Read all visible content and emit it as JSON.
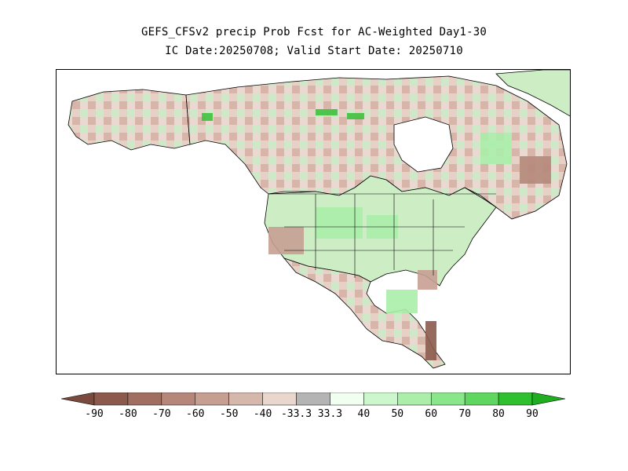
{
  "title_line1": "GEFS_CFSv2 precip Prob Fcst for AC-Weighted Day1-30",
  "title_line2": "IC Date:20250708; Valid Start Date: 20250710",
  "legend": {
    "arrow_left_color": "#7a4a3e",
    "arrow_right_color": "#1fae1f",
    "bins": [
      {
        "color": "#8b5a4d"
      },
      {
        "color": "#a06f62"
      },
      {
        "color": "#b5877a"
      },
      {
        "color": "#c69f92"
      },
      {
        "color": "#d6b7ab"
      },
      {
        "color": "#e9d6cc"
      },
      {
        "color": "#b4b4b4"
      },
      {
        "color": "#f0fff0"
      },
      {
        "color": "#ccf7cc"
      },
      {
        "color": "#aaeeaa"
      },
      {
        "color": "#8ae68a"
      },
      {
        "color": "#5fd65f"
      },
      {
        "color": "#2fc02f"
      }
    ],
    "tick_labels": [
      "-90",
      "-80",
      "-70",
      "-60",
      "-50",
      "-40",
      "-33.3",
      "33.3",
      "40",
      "50",
      "60",
      "70",
      "80",
      "90"
    ]
  },
  "map": {
    "below_color": "#c9a192",
    "above_color": "#b8f0b8",
    "strong_above_color": "#3fc23f",
    "ocean_color": "#ffffff",
    "outline_color": "#000000"
  }
}
